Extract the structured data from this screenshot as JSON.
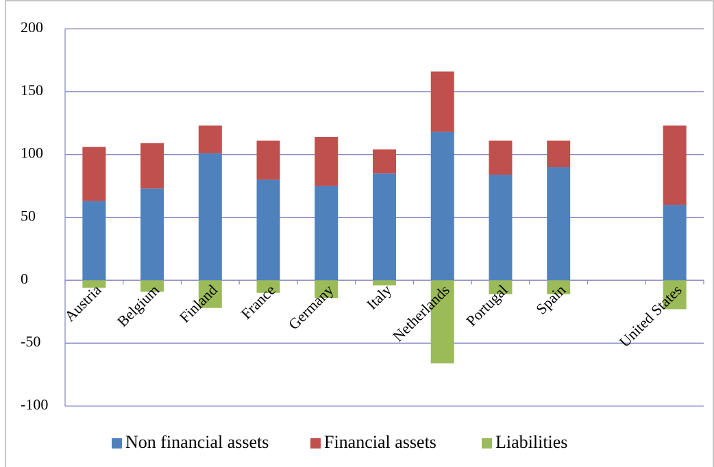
{
  "chart_data": {
    "type": "bar",
    "stacked": true,
    "categories": [
      "Austria",
      "Belgium",
      "Finland",
      "France",
      "Germany",
      "Italy",
      "Netherlands",
      "Portugal",
      "Spain",
      null,
      "United States"
    ],
    "series": [
      {
        "name": "Non financial assets",
        "color": "#4f81bd",
        "values": [
          63,
          73,
          101,
          80,
          75,
          85,
          118,
          84,
          90,
          null,
          60
        ]
      },
      {
        "name": "Financial assets",
        "color": "#c0504d",
        "values": [
          43,
          36,
          22,
          31,
          39,
          19,
          48,
          27,
          21,
          null,
          63
        ]
      },
      {
        "name": "Liabilities",
        "color": "#9bbb59",
        "values": [
          -6,
          -9,
          -22,
          -10,
          -14,
          -4,
          -66,
          -11,
          -11,
          null,
          -23
        ]
      }
    ],
    "ylim": [
      -100,
      200
    ],
    "yticks": [
      -100,
      -50,
      0,
      50,
      100,
      150,
      200
    ],
    "grid": true,
    "legend": "bottom"
  }
}
